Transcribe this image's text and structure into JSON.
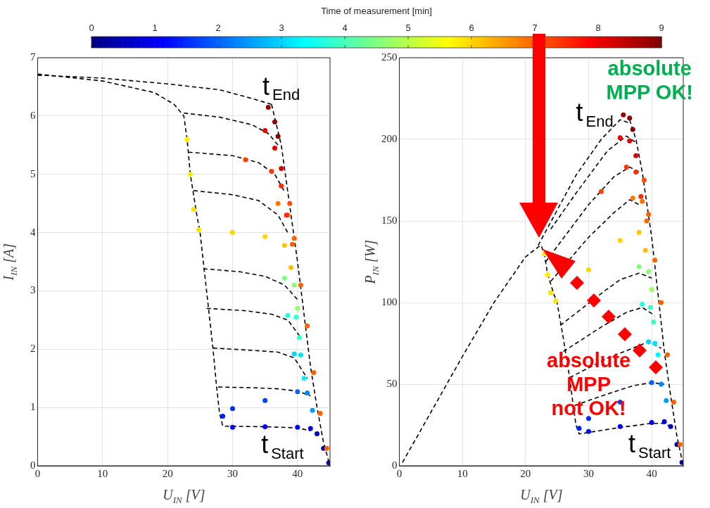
{
  "chart_data": [
    {
      "type": "line",
      "xlabel": "U$_{IN}$ [V]",
      "ylabel": "I$_{IN}$ [A]",
      "clabel": "Time of measurement [min]",
      "clim": [
        0,
        9
      ],
      "cticks": [
        0,
        1,
        2,
        3,
        4,
        5,
        6,
        7,
        8,
        9
      ],
      "xlim": [
        0,
        45
      ],
      "xticks": [
        0,
        10,
        20,
        30,
        40
      ],
      "ylim": [
        0,
        7
      ],
      "yticks": [
        0,
        1,
        2,
        3,
        4,
        5,
        6,
        7
      ],
      "grid": true,
      "legend": false,
      "line_style": "dashed",
      "annotations": [
        "t$_{End}$",
        "t$_{Start}$"
      ],
      "series": [
        {
          "color": "#000000",
          "x": [
            0,
            10,
            20,
            28,
            33,
            36
          ],
          "values": [
            6.7,
            6.65,
            6.55,
            6.45,
            6.3,
            6.2
          ]
        },
        {
          "color": "#000000",
          "x": [
            0,
            10,
            18,
            21,
            22.5,
            23,
            23.5,
            24.5,
            25,
            26,
            27,
            27.5,
            28,
            28.5,
            35,
            40,
            42
          ],
          "values": [
            6.72,
            6.6,
            6.4,
            6.2,
            6.0,
            5.6,
            5.0,
            4.3,
            4.0,
            3.0,
            2.0,
            1.4,
            0.9,
            0.68,
            0.67,
            0.65,
            0.6
          ]
        },
        {
          "color": "#000000",
          "x": [
            36,
            37.5,
            38.5,
            40,
            41,
            42,
            43,
            44,
            45
          ],
          "values": [
            6.2,
            5.5,
            4.7,
            3.5,
            2.6,
            1.7,
            1.0,
            0.4,
            0
          ]
        },
        {
          "color": "#000000",
          "x": [
            22.5,
            28,
            33,
            35.5,
            37
          ],
          "values": [
            6.05,
            5.98,
            5.85,
            5.7,
            5.5
          ]
        },
        {
          "color": "#000000",
          "x": [
            23.2,
            30,
            34,
            36.5,
            38
          ],
          "values": [
            5.38,
            5.32,
            5.2,
            5.0,
            4.7
          ]
        },
        {
          "color": "#000000",
          "x": [
            24,
            30,
            34,
            37,
            38.5
          ],
          "values": [
            4.72,
            4.65,
            4.55,
            4.3,
            4.0
          ]
        },
        {
          "color": "#000000",
          "x": [
            25.5,
            31,
            35,
            38,
            40
          ],
          "values": [
            3.38,
            3.33,
            3.25,
            3.1,
            2.85
          ]
        },
        {
          "color": "#000000",
          "x": [
            26,
            32,
            36,
            38.5,
            40.5
          ],
          "values": [
            2.7,
            2.66,
            2.6,
            2.5,
            2.2
          ]
        },
        {
          "color": "#000000",
          "x": [
            27,
            33,
            37,
            39.5,
            41.5
          ],
          "values": [
            2.02,
            1.98,
            1.95,
            1.85,
            1.5
          ]
        },
        {
          "color": "#000000",
          "x": [
            27.8,
            33,
            37,
            40,
            42
          ],
          "values": [
            1.35,
            1.34,
            1.32,
            1.28,
            1.2
          ]
        },
        {
          "type": "scatter",
          "x": [
            44.8,
            44,
            43,
            42,
            40,
            35,
            30,
            28.5,
            30,
            35,
            40,
            41.5,
            42.3,
            39.5,
            40.5,
            41,
            38.5,
            39.8,
            40.3,
            38,
            39.5,
            40,
            23,
            23.5,
            24,
            24.8,
            30,
            35,
            38,
            39,
            37,
            38.5,
            39.2,
            32,
            36,
            37.5,
            38.3,
            35,
            36.5,
            37.5,
            35.5,
            36.5,
            37,
            44.5,
            43.5,
            42.5,
            41.5,
            40.5,
            39.5,
            38.8
          ],
          "values": [
            0.05,
            0.3,
            0.55,
            0.64,
            0.66,
            0.67,
            0.66,
            0.85,
            0.98,
            1.12,
            1.27,
            1.25,
            0.95,
            1.92,
            1.9,
            1.5,
            2.58,
            2.55,
            2.2,
            3.22,
            3.1,
            2.7,
            5.6,
            5.0,
            4.4,
            4.05,
            4.0,
            3.93,
            3.78,
            3.4,
            4.5,
            4.3,
            3.8,
            5.25,
            5.05,
            4.8,
            4.3,
            5.75,
            5.45,
            5.1,
            6.15,
            5.9,
            5.65,
            0.3,
            0.9,
            1.6,
            2.4,
            3.1,
            3.9,
            4.5
          ],
          "colors": [
            "#000096",
            "#0000ad",
            "#0000c4",
            "#0000da",
            "#0000f1",
            "#0000f1",
            "#0009ff",
            "#001fff",
            "#002bff",
            "#0041ff",
            "#0063ff",
            "#0085ff",
            "#009cff",
            "#00d5ff",
            "#00e0ff",
            "#00f7ff",
            "#25ffda",
            "#30ffcf",
            "#3bffc4",
            "#80ff80",
            "#8bff74",
            "#96ff69",
            "#ffeb00",
            "#ffeb00",
            "#ffe000",
            "#ffe000",
            "#ffd500",
            "#ffd500",
            "#ffc900",
            "#ffbe00",
            "#ff7a00",
            "#ff6f00",
            "#ff6300",
            "#ff4100",
            "#ff3600",
            "#ff2b00",
            "#ff2b00",
            "#f10000",
            "#e60000",
            "#da0000",
            "#960000",
            "#8b0000",
            "#800000",
            "#ff6300",
            "#ff6300",
            "#ff6300",
            "#ff6300",
            "#ff6300",
            "#ff6300",
            "#ff4d00"
          ]
        }
      ]
    },
    {
      "type": "line",
      "xlabel": "U$_{IN}$ [V]",
      "ylabel": "P$_{IN}$ [W]",
      "xlim": [
        0,
        45
      ],
      "xticks": [
        0,
        10,
        20,
        30,
        40
      ],
      "ylim": [
        0,
        250
      ],
      "yticks": [
        0,
        50,
        100,
        150,
        200,
        250
      ],
      "grid": true,
      "legend": false,
      "line_style": "dashed",
      "annotations": [
        "t$_{End}$",
        "t$_{Start}$",
        "absolute\nMPP OK!",
        "absolute\nMPP\nnot OK!"
      ],
      "series": [
        {
          "color": "#000000",
          "x": [
            0.5,
            10,
            15,
            20,
            22,
            22.5,
            23,
            23.5,
            24.5,
            25,
            26,
            27,
            27.5,
            28,
            28.5,
            35,
            40,
            42,
            43
          ],
          "values": [
            2,
            67,
            100,
            128,
            134,
            135,
            129,
            117.5,
            105,
            100,
            78,
            54,
            38.5,
            25,
            19.5,
            23.5,
            26,
            26,
            24
          ]
        },
        {
          "color": "#000000",
          "x": [
            22,
            28,
            32,
            35,
            36.5
          ],
          "values": [
            135,
            178,
            200,
            212,
            210
          ]
        },
        {
          "color": "#000000",
          "x": [
            36.5,
            37.5,
            38.5,
            40,
            41,
            42,
            43,
            44,
            45
          ],
          "values": [
            212,
            200,
            180,
            140,
            105,
            70,
            43,
            18,
            0
          ]
        },
        {
          "color": "#000000",
          "x": [
            24,
            28,
            33,
            36,
            37.5
          ],
          "values": [
            145,
            167,
            193,
            202,
            198
          ]
        },
        {
          "color": "#000000",
          "x": [
            23.2,
            30,
            34,
            36.5,
            38
          ],
          "values": [
            125,
            160,
            177,
            183,
            180
          ]
        },
        {
          "color": "#000000",
          "x": [
            24,
            30,
            34,
            36.5,
            38
          ],
          "values": [
            113,
            140,
            155,
            163,
            160
          ]
        },
        {
          "color": "#000000",
          "x": [
            25.5,
            32.5,
            35,
            38,
            40
          ],
          "values": [
            86,
            107,
            114,
            118,
            115
          ]
        },
        {
          "color": "#000000",
          "x": [
            26,
            32,
            36,
            38.5,
            40.5
          ],
          "values": [
            70,
            85,
            94,
            97,
            92
          ]
        },
        {
          "color": "#000000",
          "x": [
            27,
            33,
            37,
            39.5,
            41.5
          ],
          "values": [
            54,
            66,
            72,
            76,
            72
          ]
        },
        {
          "color": "#000000",
          "x": [
            27.8,
            33,
            37,
            40,
            42
          ],
          "values": [
            37,
            44,
            49,
            51,
            50
          ]
        },
        {
          "type": "scatter",
          "x": [
            44.8,
            44,
            43,
            42,
            40,
            35,
            30,
            28.5,
            30,
            35,
            40,
            41.5,
            42.3,
            39.5,
            40.5,
            41,
            38.5,
            39.8,
            40.3,
            38,
            39.5,
            40,
            23,
            23.5,
            24,
            24.8,
            30,
            35,
            38,
            39,
            37,
            38.5,
            39.2,
            32,
            36,
            37.5,
            38.3,
            35,
            36.5,
            37.5,
            35.5,
            36.5,
            37,
            44.5,
            43.5,
            42.5,
            41.5,
            40.5,
            39.5,
            38.8
          ],
          "values": [
            2,
            13,
            24,
            27,
            26.5,
            24,
            21,
            23,
            29,
            39,
            51,
            50,
            40,
            76,
            75,
            68,
            99,
            97,
            88,
            122,
            119,
            108,
            130,
            117,
            106,
            101,
            120,
            138,
            143,
            132,
            164,
            162,
            150,
            168,
            183,
            180,
            165,
            201,
            199,
            190,
            215,
            213,
            206,
            13,
            39,
            68,
            100,
            126,
            154,
            175
          ],
          "colors": [
            "#000096",
            "#0000ad",
            "#0000c4",
            "#0000da",
            "#0000f1",
            "#0000f1",
            "#0009ff",
            "#001fff",
            "#002bff",
            "#0041ff",
            "#0063ff",
            "#0085ff",
            "#009cff",
            "#00d5ff",
            "#00e0ff",
            "#00f7ff",
            "#25ffda",
            "#30ffcf",
            "#3bffc4",
            "#80ff80",
            "#8bff74",
            "#96ff69",
            "#ffeb00",
            "#ffeb00",
            "#ffe000",
            "#ffe000",
            "#ffd500",
            "#ffd500",
            "#ffc900",
            "#ffbe00",
            "#ff7a00",
            "#ff6f00",
            "#ff6300",
            "#ff4100",
            "#ff3600",
            "#ff2b00",
            "#ff2b00",
            "#f10000",
            "#e60000",
            "#da0000",
            "#960000",
            "#8b0000",
            "#800000",
            "#ff6300",
            "#ff6300",
            "#ff6300",
            "#ff6300",
            "#ff6300",
            "#ff6300",
            "#ff4d00"
          ]
        }
      ]
    }
  ]
}
